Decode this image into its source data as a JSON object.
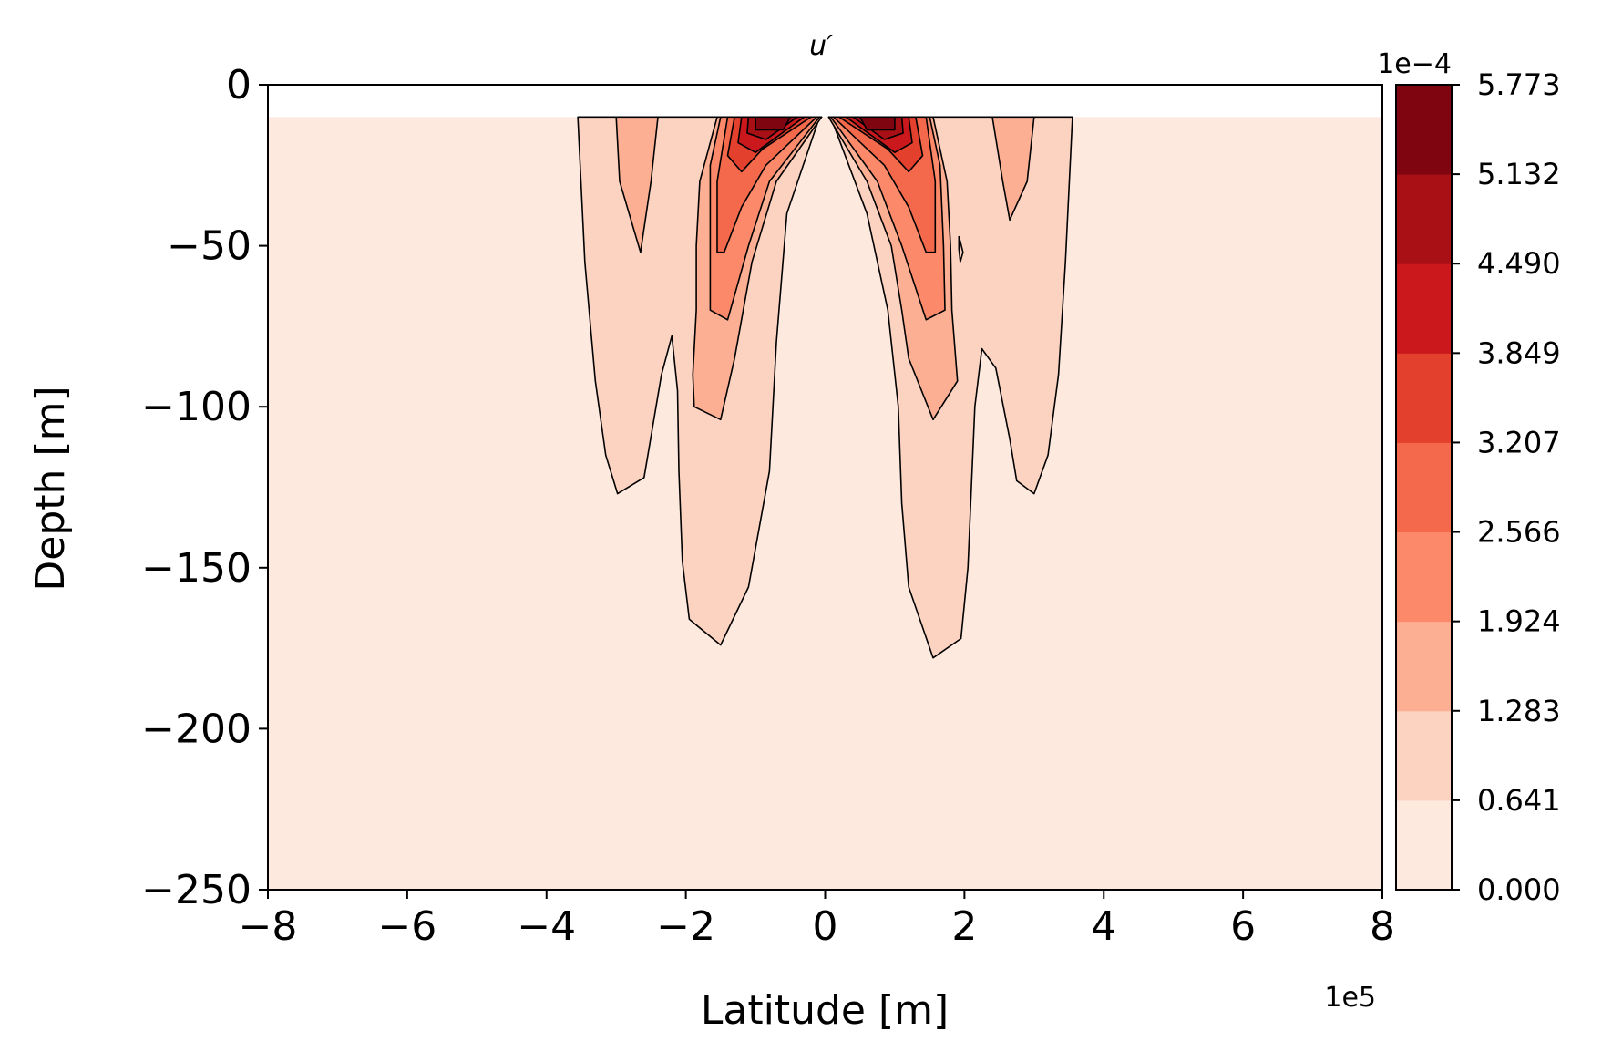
{
  "chart_data": {
    "type": "contourf",
    "title": "u′",
    "xlabel": "Latitude [m]",
    "ylabel": "Depth [m]",
    "x_offset_label": "1e5",
    "colorbar_offset_label": "1e−4",
    "xlim": [
      -8,
      8
    ],
    "ylim": [
      -250,
      0
    ],
    "x_ticks": [
      -8,
      -6,
      -4,
      -2,
      0,
      2,
      4,
      6,
      8
    ],
    "x_tick_labels": [
      "−8",
      "−6",
      "−4",
      "−2",
      "0",
      "2",
      "4",
      "6",
      "8"
    ],
    "y_ticks": [
      0,
      -50,
      -100,
      -150,
      -200,
      -250
    ],
    "y_tick_labels": [
      "0",
      "−50",
      "−100",
      "−150",
      "−200",
      "−250"
    ],
    "levels": [
      0.0,
      0.641,
      1.283,
      1.924,
      2.566,
      3.207,
      3.849,
      4.49,
      5.132,
      5.773
    ],
    "level_labels": [
      "0.000",
      "0.641",
      "1.283",
      "1.924",
      "2.566",
      "3.207",
      "3.849",
      "4.490",
      "5.132",
      "5.773"
    ],
    "colormap": "Reds",
    "colors": [
      "#fee9df",
      "#fcd3c1",
      "#fcaf93",
      "#fc8a6a",
      "#f4694b",
      "#e3402d",
      "#ca181d",
      "#a91016",
      "#7f0610"
    ],
    "data_top_depth": -10,
    "grid": false,
    "contour_regions": [
      {
        "level_index": 1,
        "points": [
          [
            -3.55,
            -10
          ],
          [
            -3.45,
            -55
          ],
          [
            -3.3,
            -92
          ],
          [
            -3.15,
            -115
          ],
          [
            -2.98,
            -127
          ],
          [
            -2.6,
            -122
          ],
          [
            -2.35,
            -90
          ],
          [
            -2.2,
            -78
          ],
          [
            -2.12,
            -95
          ],
          [
            -2.1,
            -120
          ],
          [
            -2.05,
            -148
          ],
          [
            -1.95,
            -166
          ],
          [
            -1.5,
            -174
          ],
          [
            -1.1,
            -156
          ],
          [
            -0.8,
            -120
          ],
          [
            -0.7,
            -80
          ],
          [
            -0.55,
            -40
          ],
          [
            -0.08,
            -10
          ]
        ]
      },
      {
        "level_index": 1,
        "points": [
          [
            0.08,
            -10
          ],
          [
            0.6,
            -40
          ],
          [
            0.9,
            -70
          ],
          [
            1.05,
            -100
          ],
          [
            1.1,
            -130
          ],
          [
            1.2,
            -156
          ],
          [
            1.55,
            -178
          ],
          [
            1.95,
            -172
          ],
          [
            2.05,
            -150
          ],
          [
            2.1,
            -125
          ],
          [
            2.15,
            -100
          ],
          [
            2.25,
            -82
          ],
          [
            2.45,
            -88
          ],
          [
            2.65,
            -110
          ],
          [
            2.75,
            -123
          ],
          [
            3.0,
            -127
          ],
          [
            3.2,
            -115
          ],
          [
            3.35,
            -90
          ],
          [
            3.45,
            -55
          ],
          [
            3.55,
            -10
          ]
        ]
      },
      {
        "level_index": 2,
        "points": [
          [
            -3.0,
            -10
          ],
          [
            -2.95,
            -30
          ],
          [
            -2.65,
            -52
          ],
          [
            -2.5,
            -30
          ],
          [
            -2.4,
            -10
          ]
        ]
      },
      {
        "level_index": 2,
        "points": [
          [
            2.4,
            -10
          ],
          [
            2.55,
            -30
          ],
          [
            2.65,
            -42
          ],
          [
            2.9,
            -30
          ],
          [
            3.0,
            -10
          ]
        ]
      },
      {
        "level_index": 2,
        "points": [
          [
            -1.55,
            -10
          ],
          [
            -1.8,
            -30
          ],
          [
            -1.85,
            -50
          ],
          [
            -1.85,
            -70
          ],
          [
            -1.9,
            -90
          ],
          [
            -1.88,
            -100
          ],
          [
            -1.5,
            -104
          ],
          [
            -1.3,
            -85
          ],
          [
            -1.05,
            -55
          ],
          [
            -0.7,
            -30
          ],
          [
            -0.05,
            -10
          ]
        ]
      },
      {
        "level_index": 2,
        "points": [
          [
            0.05,
            -10
          ],
          [
            0.6,
            -30
          ],
          [
            0.95,
            -50
          ],
          [
            1.1,
            -70
          ],
          [
            1.2,
            -85
          ],
          [
            1.55,
            -104
          ],
          [
            1.9,
            -92
          ],
          [
            1.82,
            -70
          ],
          [
            1.8,
            -50
          ],
          [
            1.75,
            -30
          ],
          [
            1.55,
            -10
          ]
        ]
      },
      {
        "level_index": 3,
        "points": [
          [
            -1.5,
            -10
          ],
          [
            -1.65,
            -25
          ],
          [
            -1.65,
            -45
          ],
          [
            -1.65,
            -60
          ],
          [
            -1.65,
            -70
          ],
          [
            -1.4,
            -73
          ],
          [
            -1.1,
            -50
          ],
          [
            -0.8,
            -30
          ],
          [
            -0.08,
            -10
          ]
        ]
      },
      {
        "level_index": 3,
        "points": [
          [
            0.08,
            -10
          ],
          [
            0.75,
            -30
          ],
          [
            1.1,
            -50
          ],
          [
            1.45,
            -73
          ],
          [
            1.72,
            -70
          ],
          [
            1.7,
            -50
          ],
          [
            1.65,
            -25
          ],
          [
            1.5,
            -10
          ]
        ]
      },
      {
        "level_index": 4,
        "points": [
          [
            -1.4,
            -10
          ],
          [
            -1.55,
            -30
          ],
          [
            -1.55,
            -52
          ],
          [
            -1.45,
            -52
          ],
          [
            -1.2,
            -38
          ],
          [
            -0.85,
            -25
          ],
          [
            -0.12,
            -10
          ]
        ]
      },
      {
        "level_index": 4,
        "points": [
          [
            0.12,
            -10
          ],
          [
            0.85,
            -25
          ],
          [
            1.2,
            -38
          ],
          [
            1.45,
            -52
          ],
          [
            1.58,
            -52
          ],
          [
            1.58,
            -30
          ],
          [
            1.45,
            -10
          ]
        ]
      },
      {
        "level_index": 5,
        "points": [
          [
            -1.3,
            -10
          ],
          [
            -1.4,
            -22
          ],
          [
            -1.2,
            -27
          ],
          [
            -0.9,
            -20
          ],
          [
            -0.2,
            -10
          ]
        ]
      },
      {
        "level_index": 5,
        "points": [
          [
            0.2,
            -10
          ],
          [
            0.9,
            -20
          ],
          [
            1.2,
            -27
          ],
          [
            1.4,
            -22
          ],
          [
            1.3,
            -10
          ]
        ]
      },
      {
        "level_index": 6,
        "points": [
          [
            -1.2,
            -10
          ],
          [
            -1.25,
            -18
          ],
          [
            -1.0,
            -21
          ],
          [
            -0.3,
            -10
          ]
        ]
      },
      {
        "level_index": 6,
        "points": [
          [
            0.3,
            -10
          ],
          [
            1.0,
            -21
          ],
          [
            1.25,
            -18
          ],
          [
            1.2,
            -10
          ]
        ]
      },
      {
        "level_index": 7,
        "points": [
          [
            -1.1,
            -10
          ],
          [
            -1.12,
            -15
          ],
          [
            -0.85,
            -17
          ],
          [
            -0.4,
            -10
          ]
        ]
      },
      {
        "level_index": 7,
        "points": [
          [
            0.4,
            -10
          ],
          [
            0.85,
            -17
          ],
          [
            1.12,
            -15
          ],
          [
            1.1,
            -10
          ]
        ]
      },
      {
        "level_index": 8,
        "points": [
          [
            -1.0,
            -10
          ],
          [
            -1.0,
            -14
          ],
          [
            -0.6,
            -14
          ],
          [
            -0.5,
            -10
          ]
        ]
      },
      {
        "level_index": 8,
        "points": [
          [
            0.5,
            -10
          ],
          [
            0.6,
            -14
          ],
          [
            1.0,
            -14
          ],
          [
            1.0,
            -10
          ]
        ]
      }
    ],
    "contour_lines": [
      {
        "points": [
          [
            1.92,
            -47
          ],
          [
            1.98,
            -52
          ],
          [
            1.94,
            -55
          ],
          [
            1.92,
            -51
          ],
          [
            1.92,
            -47
          ]
        ]
      }
    ]
  }
}
